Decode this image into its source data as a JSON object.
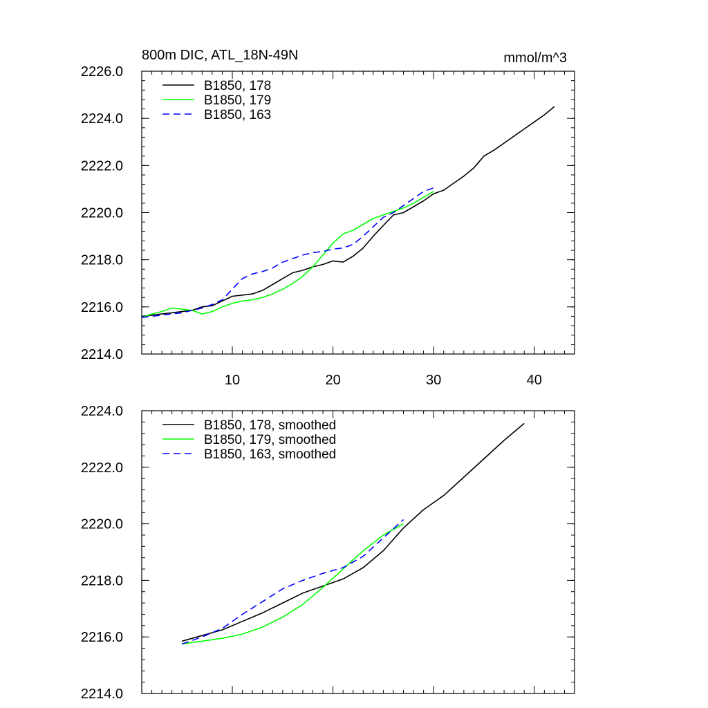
{
  "chart_data": [
    {
      "type": "line",
      "title": "800m DIC, ATL_18N-49N",
      "units": "mmol/m^3",
      "xlim": [
        1,
        44
      ],
      "ylim": [
        2214,
        2226
      ],
      "xticks": [
        10,
        20,
        30,
        40
      ],
      "xtick_labels": [
        "10",
        "20",
        "30",
        "40"
      ],
      "yticks": [
        2214,
        2216,
        2218,
        2220,
        2222,
        2224,
        2226
      ],
      "ytick_labels": [
        "2214.0",
        "2216.0",
        "2218.0",
        "2220.0",
        "2222.0",
        "2224.0",
        "2226.0"
      ],
      "legend_position": "top-left",
      "series": [
        {
          "name": "B1850, 178",
          "color": "#000000",
          "dash": "solid",
          "x": [
            1,
            2,
            3,
            4,
            5,
            6,
            7,
            8,
            9,
            10,
            11,
            12,
            13,
            14,
            15,
            16,
            17,
            18,
            19,
            20,
            21,
            22,
            23,
            24,
            25,
            26,
            27,
            28,
            29,
            30,
            31,
            32,
            33,
            34,
            35,
            36,
            37,
            38,
            39,
            40,
            41,
            42
          ],
          "y": [
            2215.6,
            2215.65,
            2215.7,
            2215.75,
            2215.8,
            2215.85,
            2216.0,
            2216.05,
            2216.25,
            2216.45,
            2216.5,
            2216.55,
            2216.7,
            2216.95,
            2217.2,
            2217.45,
            2217.55,
            2217.7,
            2217.8,
            2217.95,
            2217.9,
            2218.15,
            2218.5,
            2219.0,
            2219.45,
            2219.9,
            2220.0,
            2220.25,
            2220.5,
            2220.8,
            2220.95,
            2221.25,
            2221.55,
            2221.9,
            2222.4,
            2222.65,
            2222.95,
            2223.25,
            2223.55,
            2223.85,
            2224.15,
            2224.5
          ]
        },
        {
          "name": "B1850, 179",
          "color": "#00ff00",
          "dash": "solid",
          "x": [
            1,
            2,
            3,
            4,
            5,
            6,
            7,
            8,
            9,
            10,
            11,
            12,
            13,
            14,
            15,
            16,
            17,
            18,
            19,
            20,
            21,
            22,
            23,
            24,
            25,
            26,
            27,
            28,
            29,
            30
          ],
          "y": [
            2215.55,
            2215.7,
            2215.8,
            2215.95,
            2215.9,
            2215.85,
            2215.7,
            2215.8,
            2216.0,
            2216.15,
            2216.25,
            2216.3,
            2216.4,
            2216.55,
            2216.75,
            2217.0,
            2217.3,
            2217.7,
            2218.2,
            2218.7,
            2219.1,
            2219.25,
            2219.5,
            2219.75,
            2219.9,
            2220.05,
            2220.2,
            2220.4,
            2220.65,
            2220.9
          ]
        },
        {
          "name": "B1850, 163",
          "color": "#0000ff",
          "dash": "dashed",
          "x": [
            1,
            2,
            3,
            4,
            5,
            6,
            7,
            8,
            9,
            10,
            11,
            12,
            13,
            14,
            15,
            16,
            17,
            18,
            19,
            20,
            21,
            22,
            23,
            24,
            25,
            26,
            27,
            28,
            29,
            30
          ],
          "y": [
            2215.55,
            2215.6,
            2215.65,
            2215.7,
            2215.75,
            2215.85,
            2215.95,
            2216.1,
            2216.3,
            2216.75,
            2217.2,
            2217.4,
            2217.5,
            2217.65,
            2217.9,
            2218.05,
            2218.2,
            2218.3,
            2218.35,
            2218.45,
            2218.5,
            2218.65,
            2219.0,
            2219.4,
            2219.8,
            2220.0,
            2220.3,
            2220.6,
            2220.9,
            2221.05
          ]
        }
      ]
    },
    {
      "type": "line",
      "title": "",
      "units": "",
      "xlim": [
        1,
        44
      ],
      "ylim": [
        2214,
        2224
      ],
      "xticks": [
        10,
        20,
        30,
        40
      ],
      "xtick_labels": [
        "",
        "",
        "",
        ""
      ],
      "yticks": [
        2214,
        2216,
        2218,
        2220,
        2222,
        2224
      ],
      "ytick_labels": [
        "2214.0",
        "2216.0",
        "2218.0",
        "2220.0",
        "2222.0",
        "2224.0"
      ],
      "legend_position": "top-left",
      "series": [
        {
          "name": "B1850, 178, smoothed",
          "color": "#000000",
          "dash": "solid",
          "x": [
            5,
            7,
            9,
            11,
            13,
            15,
            17,
            19,
            21,
            23,
            25,
            27,
            29,
            31,
            33,
            35,
            37,
            39
          ],
          "y": [
            2215.85,
            2216.05,
            2216.25,
            2216.55,
            2216.85,
            2217.2,
            2217.55,
            2217.8,
            2218.05,
            2218.45,
            2219.05,
            2219.85,
            2220.5,
            2221.0,
            2221.65,
            2222.3,
            2222.95,
            2223.55
          ]
        },
        {
          "name": "B1850, 179, smoothed",
          "color": "#00ff00",
          "dash": "solid",
          "x": [
            5,
            7,
            9,
            11,
            13,
            15,
            17,
            19,
            21,
            23,
            25,
            27
          ],
          "y": [
            2215.75,
            2215.85,
            2215.95,
            2216.1,
            2216.35,
            2216.7,
            2217.15,
            2217.75,
            2218.4,
            2219.05,
            2219.6,
            2220.0
          ]
        },
        {
          "name": "B1850, 163, smoothed",
          "color": "#0000ff",
          "dash": "dashed",
          "x": [
            5,
            7,
            9,
            11,
            13,
            15,
            17,
            19,
            21,
            23,
            25,
            27
          ],
          "y": [
            2215.75,
            2216.0,
            2216.3,
            2216.8,
            2217.25,
            2217.7,
            2218.0,
            2218.25,
            2218.45,
            2218.85,
            2219.5,
            2220.15
          ]
        }
      ]
    }
  ]
}
